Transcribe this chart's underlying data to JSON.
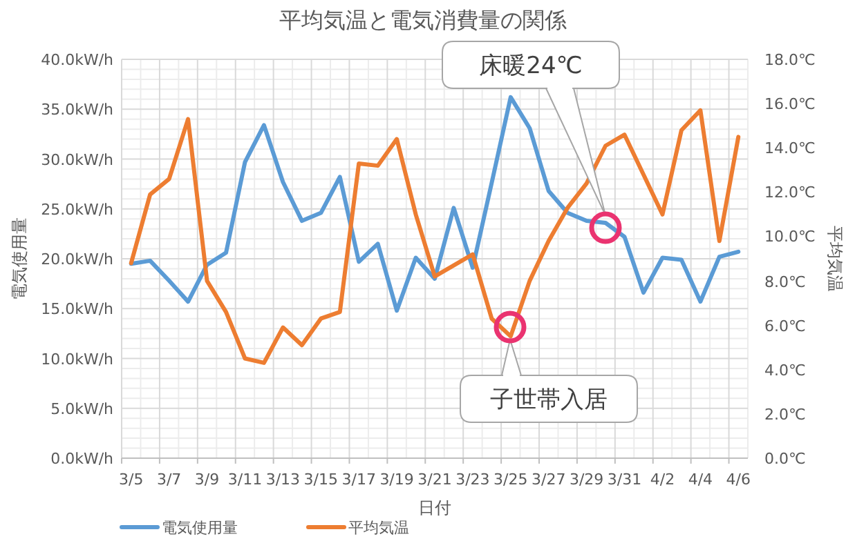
{
  "chart_data": {
    "type": "line",
    "title": "平均気温と電気消費量の関係",
    "xlabel": "日付",
    "ylabel": "電気使用量",
    "y2label": "平均気温",
    "categories": [
      "3/5",
      null,
      "3/7",
      null,
      "3/9",
      null,
      "3/11",
      null,
      "3/13",
      null,
      "3/15",
      null,
      "3/17",
      null,
      "3/19",
      null,
      "3/21",
      null,
      "3/23",
      null,
      "3/25",
      null,
      "3/27",
      null,
      "3/29",
      null,
      "3/31",
      null,
      "4/2",
      null,
      "4/4",
      null,
      "4/6"
    ],
    "series": [
      {
        "name": "電気使用量",
        "color": "#5b9bd5",
        "values": [
          19.5,
          19.8,
          17.8,
          15.7,
          19.4,
          20.6,
          29.7,
          33.4,
          27.7,
          23.8,
          24.6,
          28.2,
          19.7,
          21.5,
          14.8,
          20.1,
          18.0,
          25.1,
          19.1,
          27.6,
          36.2,
          33.1,
          26.8,
          24.6,
          23.8,
          23.6,
          22.2,
          16.6,
          20.1,
          19.9,
          15.7,
          20.2,
          20.7
        ]
      },
      {
        "name": "平均気温",
        "color": "#ed7d31",
        "axis": "y2",
        "values": [
          8.8,
          11.9,
          12.6,
          15.3,
          8.0,
          6.6,
          4.5,
          4.3,
          5.9,
          5.1,
          6.3,
          6.6,
          13.3,
          13.2,
          14.4,
          11.0,
          8.2,
          8.7,
          9.2,
          6.3,
          5.5,
          8.0,
          9.8,
          11.3,
          12.4,
          14.1,
          14.6,
          12.8,
          11.0,
          14.8,
          15.7,
          9.8,
          14.5
        ]
      }
    ],
    "ylim": [
      0,
      40
    ],
    "yticks": [
      {
        "value": 0,
        "label": "0.0kW/h"
      },
      {
        "value": 5,
        "label": "5.0kW/h"
      },
      {
        "value": 10,
        "label": "10.0kW/h"
      },
      {
        "value": 15,
        "label": "15.0kW/h"
      },
      {
        "value": 20,
        "label": "20.0kW/h"
      },
      {
        "value": 25,
        "label": "25.0kW/h"
      },
      {
        "value": 30,
        "label": "30.0kW/h"
      },
      {
        "value": 35,
        "label": "35.0kW/h"
      },
      {
        "value": 40,
        "label": "40.0kW/h"
      }
    ],
    "y2lim": [
      0,
      18
    ],
    "y2ticks": [
      {
        "value": 0,
        "label": "0.0℃"
      },
      {
        "value": 2,
        "label": "2.0℃"
      },
      {
        "value": 4,
        "label": "4.0℃"
      },
      {
        "value": 6,
        "label": "6.0℃"
      },
      {
        "value": 8,
        "label": "8.0℃"
      },
      {
        "value": 10,
        "label": "10.0℃"
      },
      {
        "value": 12,
        "label": "12.0℃"
      },
      {
        "value": 14,
        "label": "14.0℃"
      },
      {
        "value": 16,
        "label": "16.0℃"
      },
      {
        "value": 18,
        "label": "18.0℃"
      }
    ],
    "annotations": [
      "床暖24℃",
      "子世帯入居"
    ],
    "grid": true,
    "legend": "bottom",
    "marker": "none",
    "line_style": "solid"
  }
}
